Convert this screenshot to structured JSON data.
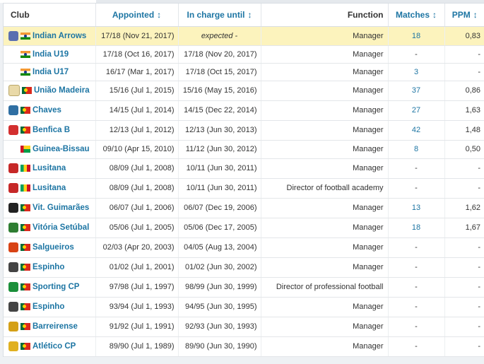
{
  "columns": {
    "club": "Club",
    "appointed": "Appointed",
    "in_charge_until": "In charge until",
    "function": "Function",
    "matches": "Matches",
    "ppm": "PPM",
    "sort_icon": "↕"
  },
  "rows": [
    {
      "crest": "indian-arrows-crest",
      "flag": "india-flag",
      "club": "Indian Arrows",
      "appointed": "17/18 (Nov 21, 2017)",
      "until": "expected -",
      "function": "Manager",
      "matches": "18",
      "ppm": "0,83",
      "highlight": true
    },
    {
      "crest": "",
      "flag": "india-flag",
      "club": "India U19",
      "appointed": "17/18 (Oct 16, 2017)",
      "until": "17/18 (Nov 20, 2017)",
      "function": "Manager",
      "matches": "-",
      "ppm": "-"
    },
    {
      "crest": "",
      "flag": "india-flag",
      "club": "India U17",
      "appointed": "16/17 (Mar 1, 2017)",
      "until": "17/18 (Oct 15, 2017)",
      "function": "Manager",
      "matches": "3",
      "ppm": "-"
    },
    {
      "crest": "uniao-madeira-crest",
      "flag": "portugal-flag",
      "club": "União Madeira",
      "appointed": "15/16 (Jul 1, 2015)",
      "until": "15/16 (May 15, 2016)",
      "function": "Manager",
      "matches": "37",
      "ppm": "0,86"
    },
    {
      "crest": "chaves-crest",
      "flag": "portugal-flag",
      "club": "Chaves",
      "appointed": "14/15 (Jul 1, 2014)",
      "until": "14/15 (Dec 22, 2014)",
      "function": "Manager",
      "matches": "27",
      "ppm": "1,63"
    },
    {
      "crest": "benfica-crest",
      "flag": "portugal-flag",
      "club": "Benfica B",
      "appointed": "12/13 (Jul 1, 2012)",
      "until": "12/13 (Jun 30, 2013)",
      "function": "Manager",
      "matches": "42",
      "ppm": "1,48"
    },
    {
      "crest": "",
      "flag": "guinea-bissau-flag",
      "club": "Guinea-Bissau",
      "appointed": "09/10 (Apr 15, 2010)",
      "until": "11/12 (Jun 30, 2012)",
      "function": "Manager",
      "matches": "8",
      "ppm": "0,50"
    },
    {
      "crest": "lusitana-crest",
      "flag": "sao-tome-flag",
      "club": "Lusitana",
      "appointed": "08/09 (Jul 1, 2008)",
      "until": "10/11 (Jun 30, 2011)",
      "function": "Manager",
      "matches": "-",
      "ppm": "-"
    },
    {
      "crest": "lusitana-crest",
      "flag": "sao-tome-flag",
      "club": "Lusitana",
      "appointed": "08/09 (Jul 1, 2008)",
      "until": "10/11 (Jun 30, 2011)",
      "function": "Director of football academy",
      "matches": "-",
      "ppm": "-"
    },
    {
      "crest": "vit-guimaraes-crest",
      "flag": "portugal-flag",
      "club": "Vit. Guimarães",
      "appointed": "06/07 (Jul 1, 2006)",
      "until": "06/07 (Dec 19, 2006)",
      "function": "Manager",
      "matches": "13",
      "ppm": "1,62"
    },
    {
      "crest": "vitoria-setubal-crest",
      "flag": "portugal-flag",
      "club": "Vitória Setúbal",
      "appointed": "05/06 (Jul 1, 2005)",
      "until": "05/06 (Dec 17, 2005)",
      "function": "Manager",
      "matches": "18",
      "ppm": "1,67"
    },
    {
      "crest": "salgueiros-crest",
      "flag": "portugal-flag",
      "club": "Salgueiros",
      "appointed": "02/03 (Apr 20, 2003)",
      "until": "04/05 (Aug 13, 2004)",
      "function": "Manager",
      "matches": "-",
      "ppm": "-"
    },
    {
      "crest": "espinho-crest",
      "flag": "portugal-flag",
      "club": "Espinho",
      "appointed": "01/02 (Jul 1, 2001)",
      "until": "01/02 (Jun 30, 2002)",
      "function": "Manager",
      "matches": "-",
      "ppm": "-"
    },
    {
      "crest": "sporting-cp-crest",
      "flag": "portugal-flag",
      "club": "Sporting CP",
      "appointed": "97/98 (Jul 1, 1997)",
      "until": "98/99 (Jun 30, 1999)",
      "function": "Director of professional football",
      "matches": "-",
      "ppm": "-"
    },
    {
      "crest": "espinho-crest",
      "flag": "portugal-flag",
      "club": "Espinho",
      "appointed": "93/94 (Jul 1, 1993)",
      "until": "94/95 (Jun 30, 1995)",
      "function": "Manager",
      "matches": "-",
      "ppm": "-"
    },
    {
      "crest": "barreirense-crest",
      "flag": "portugal-flag",
      "club": "Barreirense",
      "appointed": "91/92 (Jul 1, 1991)",
      "until": "92/93 (Jun 30, 1993)",
      "function": "Manager",
      "matches": "-",
      "ppm": "-"
    },
    {
      "crest": "atletico-cp-crest",
      "flag": "portugal-flag",
      "club": "Atlético CP",
      "appointed": "89/90 (Jul 1, 1989)",
      "until": "89/90 (Jun 30, 1990)",
      "function": "Manager",
      "matches": "-",
      "ppm": "-"
    }
  ]
}
